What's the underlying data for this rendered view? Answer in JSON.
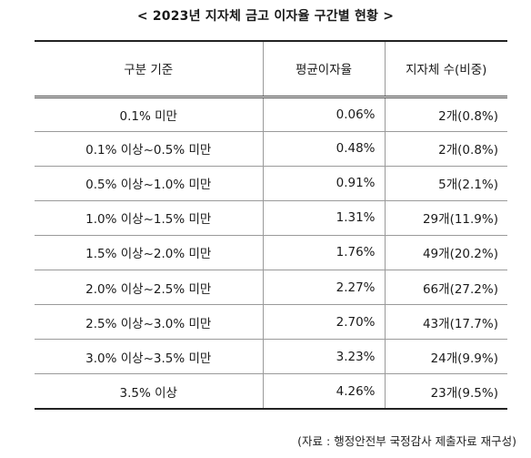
{
  "title": "< 2023년 지자체 금고 이자율 구간별 현황 >",
  "table": {
    "headers": [
      "구분 기준",
      "평균이자율",
      "지자체 수(비중)"
    ],
    "rows": [
      {
        "range": "0.1% 미만",
        "rate": "0.06%",
        "count": "2개(0.8%)"
      },
      {
        "range": "0.1% 이상~0.5% 미만",
        "rate": "0.48%",
        "count": "2개(0.8%)"
      },
      {
        "range": "0.5% 이상~1.0% 미만",
        "rate": "0.91%",
        "count": "5개(2.1%)"
      },
      {
        "range": "1.0% 이상~1.5% 미만",
        "rate": "1.31%",
        "count": "29개(11.9%)"
      },
      {
        "range": "1.5% 이상~2.0% 미만",
        "rate": "1.76%",
        "count": "49개(20.2%)"
      },
      {
        "range": "2.0% 이상~2.5% 미만",
        "rate": "2.27%",
        "count": "66개(27.2%)"
      },
      {
        "range": "2.5% 이상~3.0% 미만",
        "rate": "2.70%",
        "count": "43개(17.7%)"
      },
      {
        "range": "3.0% 이상~3.5% 미만",
        "rate": "3.23%",
        "count": "24개(9.9%)"
      },
      {
        "range": "3.5% 이상",
        "rate": "4.26%",
        "count": "23개(9.5%)"
      }
    ]
  },
  "source": "(자료 : 행정안전부 국정감사 제출자료 재구성)"
}
